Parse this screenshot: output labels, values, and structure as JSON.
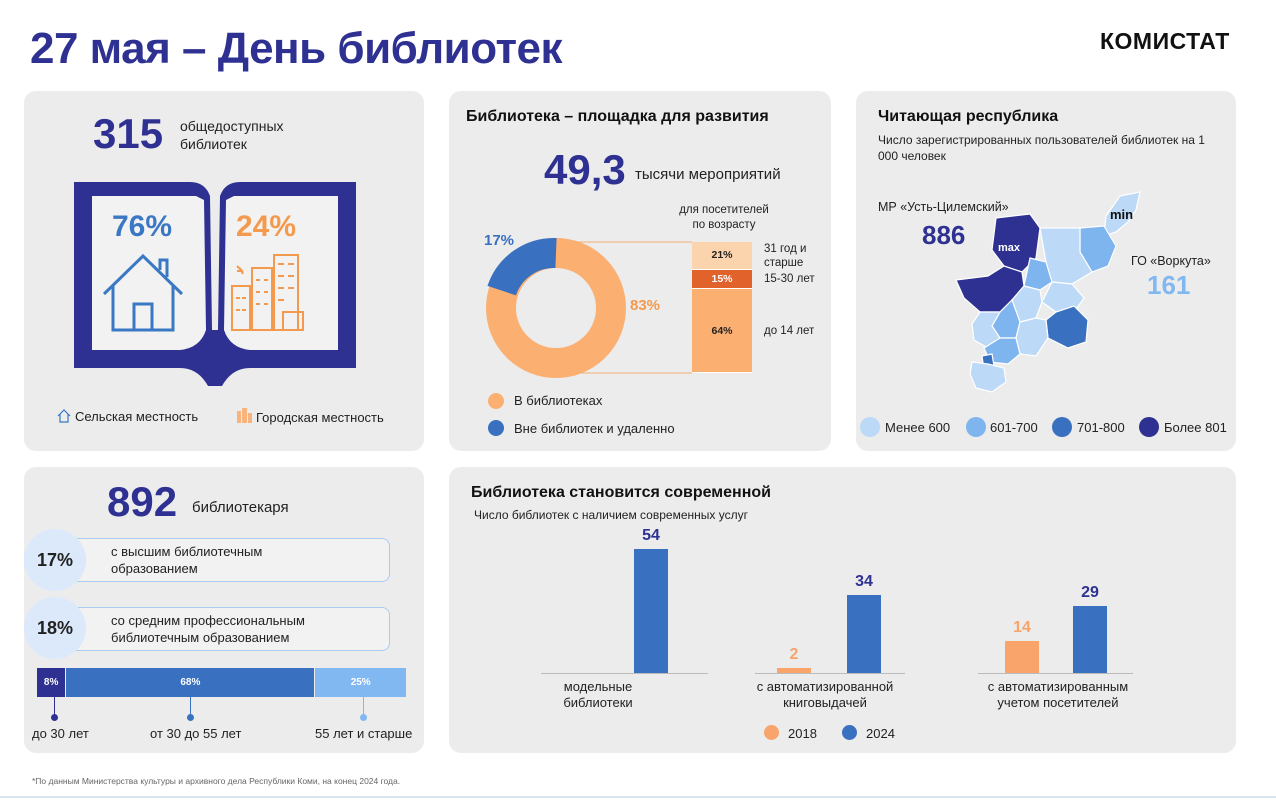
{
  "header": {
    "title": "27 мая – День библиотек",
    "logo": "КОМИСТАТ"
  },
  "libraries": {
    "count": "315",
    "count_label": "общедоступных библиотек",
    "rural_pct": "76%",
    "urban_pct": "24%",
    "rural_label": "Сельская местность",
    "urban_label": "Городская местность",
    "book_color": "#2e3192",
    "rural_color": "#3a78c4",
    "urban_color": "#f39a4e"
  },
  "development": {
    "heading": "Библиотека – площадка для развития",
    "events_value": "49,3",
    "events_unit": "тысячи мероприятий",
    "donut_out_label": "17%",
    "donut_in_label": "83%",
    "age_header": "для посетителей по возрасту",
    "age_rows": [
      {
        "pct": "21%",
        "value": 21,
        "label": "31 год и старше",
        "color": "#fbd3ad"
      },
      {
        "pct": "15%",
        "value": 15,
        "label": "15-30 лет",
        "color": "#e2622c"
      },
      {
        "pct": "64%",
        "value": 64,
        "label": "до 14 лет",
        "color": "#fbb072"
      }
    ],
    "legend_in": "В библиотеках",
    "legend_out": "Вне библиотек и удаленно"
  },
  "reading": {
    "heading": "Читающая республика",
    "subtitle": "Число зарегистрированных пользователей библиотек на 1 000 человек",
    "max_area": "МР «Усть-Цилемский»",
    "max_value": "886",
    "max_tag": "max",
    "min_area": "ГО «Воркута»",
    "min_value": "161",
    "min_tag": "min",
    "legend": [
      {
        "label": "Менее 600",
        "color": "#bcd9f7"
      },
      {
        "label": "601-700",
        "color": "#7fb5ef"
      },
      {
        "label": "701-800",
        "color": "#3a70c0"
      },
      {
        "label": "Более 801",
        "color": "#2e3192"
      }
    ]
  },
  "librarians": {
    "count": "892",
    "count_label": "библиотекаря",
    "higher_pct": "17%",
    "higher_label_1": "с высшим библиотечным",
    "higher_label_2": "образованием",
    "secondary_pct": "18%",
    "secondary_label_1": "со средним профессиональным",
    "secondary_label_2": "библиотечным образованием",
    "age_segments": [
      {
        "pct": "8%",
        "value": 8,
        "label": "до 30 лет",
        "color": "#2e3192"
      },
      {
        "pct": "68%",
        "value": 68,
        "label": "от 30 до 55 лет",
        "color": "#3a70c0"
      },
      {
        "pct": "25%",
        "value": 25,
        "label": "55 лет и старше",
        "color": "#82b8f2"
      }
    ]
  },
  "modern": {
    "heading": "Библиотека становится современной",
    "subtitle": "Число библиотек с наличием современных услуг"
  },
  "chart_data": {
    "type": "bar",
    "title": "Библиотека становится современной",
    "subtitle": "Число библиотек с наличием современных услуг",
    "categories": [
      "модельные библиотеки",
      "с автоматизированной книговыдачей",
      "с автоматизированным учетом посетителей"
    ],
    "category_lines": [
      [
        "модельные",
        "библиотеки"
      ],
      [
        "с автоматизированной",
        "книговыдачей"
      ],
      [
        "с автоматизированным",
        "учетом посетителей"
      ]
    ],
    "series": [
      {
        "name": "2018",
        "values": [
          null,
          2,
          14
        ],
        "color": "#f8a46a"
      },
      {
        "name": "2024",
        "values": [
          54,
          34,
          29
        ],
        "color": "#3a70c0"
      }
    ],
    "ylim": [
      0,
      54
    ],
    "legend": "bottom"
  },
  "footnote": "*По данным Министерства культуры и архивного дела Республики Коми, на конец 2024 года."
}
